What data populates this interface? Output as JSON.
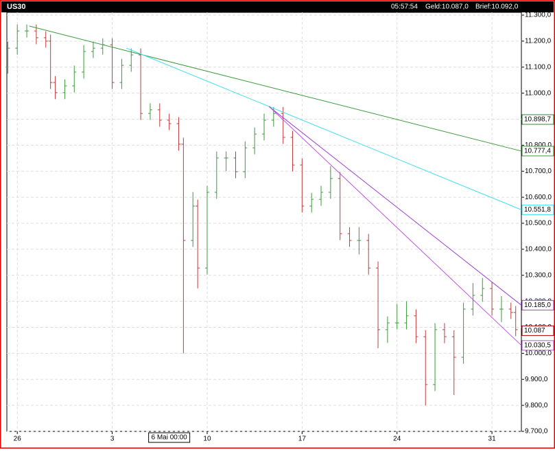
{
  "chart_data": {
    "type": "ohlc",
    "title": "US30",
    "header_info": [
      "05:57:54",
      "Geld:10.087,0",
      "Brief:10.092,0"
    ],
    "up_color": "#3a9a3a",
    "down_color": "#c23a3a",
    "grid": true,
    "xlim": [
      -2.2,
      106.2
    ],
    "ylim": [
      9700,
      11300
    ],
    "xticks": [
      {
        "value": 0,
        "label": "26"
      },
      {
        "value": 20,
        "label": "3"
      },
      {
        "value": 40,
        "label": "10"
      },
      {
        "value": 60,
        "label": "17"
      },
      {
        "value": 80,
        "label": "24"
      },
      {
        "value": 100,
        "label": "31"
      }
    ],
    "cursor": {
      "value": 32,
      "label": "6 Mai 00:00"
    },
    "yticks": [
      {
        "value": 9700,
        "label": "9.700,0"
      },
      {
        "value": 9800,
        "label": "9.800,0"
      },
      {
        "value": 9900,
        "label": "9.900,0"
      },
      {
        "value": 10000,
        "label": "10.000,0"
      },
      {
        "value": 10100,
        "label": "10.100,0"
      },
      {
        "value": 10200,
        "label": "10.200,0"
      },
      {
        "value": 10300,
        "label": "10.300,0"
      },
      {
        "value": 10400,
        "label": "10.400,0"
      },
      {
        "value": 10500,
        "label": "10.500,0"
      },
      {
        "value": 10600,
        "label": "10.600,0"
      },
      {
        "value": 10700,
        "label": "10.700,0"
      },
      {
        "value": 10800,
        "label": "10.800,0"
      },
      {
        "value": 10900,
        "label": "10.900,0"
      },
      {
        "value": 11000,
        "label": "11.000,0"
      },
      {
        "value": 11100,
        "label": "11.100,0"
      },
      {
        "value": 11200,
        "label": "11.200,0"
      },
      {
        "value": 11300,
        "label": "11.300,0"
      }
    ],
    "x": [
      -2,
      0,
      2,
      4,
      6,
      7,
      8,
      10,
      12,
      14,
      16,
      18,
      20,
      22,
      24,
      26,
      28,
      30,
      32,
      34,
      35,
      37,
      38,
      40,
      42,
      44,
      46,
      48,
      50,
      52,
      54,
      56,
      58,
      60,
      62,
      64,
      66,
      68,
      70,
      72,
      74,
      76,
      78,
      80,
      82,
      84,
      86,
      88,
      90,
      92,
      94,
      96,
      98,
      100,
      102,
      104,
      105
    ],
    "open": [
      11100,
      11173,
      11239,
      11239,
      11213,
      11200,
      11041,
      11002,
      11028,
      11081,
      11160,
      11173,
      11186,
      11041,
      11107,
      11147,
      10922,
      10936,
      10896,
      10883,
      10804,
      10434,
      10566,
      10328,
      10619,
      10751,
      10751,
      10698,
      10790,
      10843,
      10896,
      10922,
      10830,
      10724,
      10566,
      10592,
      10619,
      10672,
      10460,
      10434,
      10434,
      10328,
      10091,
      10117,
      10117,
      10144,
      10064,
      9880,
      10091,
      10064,
      9985,
      10170,
      10223,
      10249,
      10170,
      10170,
      10157
    ],
    "high": [
      11198,
      11264,
      11264,
      11264,
      11238,
      11225,
      11066,
      11053,
      11106,
      11185,
      11198,
      11211,
      11211,
      11132,
      11172,
      11172,
      10961,
      10961,
      10921,
      10908,
      10829,
      10620,
      10591,
      10644,
      10776,
      10776,
      10776,
      10815,
      10868,
      10921,
      10947,
      10947,
      10855,
      10749,
      10617,
      10644,
      10720,
      10697,
      10485,
      10485,
      10459,
      10353,
      10142,
      10190,
      10200,
      10169,
      10089,
      10116,
      10116,
      10089,
      10195,
      10270,
      10290,
      10274,
      10220,
      10195,
      10182
    ],
    "low": [
      11075,
      11148,
      11214,
      11188,
      11175,
      11016,
      10977,
      10977,
      11003,
      11056,
      11135,
      11148,
      11016,
      11016,
      11082,
      10897,
      10897,
      10871,
      10858,
      10779,
      10000,
      10409,
      10250,
      10303,
      10594,
      10700,
      10673,
      10673,
      10765,
      10818,
      10871,
      10805,
      10699,
      10541,
      10541,
      10567,
      10594,
      10435,
      10409,
      10380,
      10303,
      10020,
      10040,
      10092,
      10092,
      10039,
      9800,
      9855,
      10039,
      9840,
      9960,
      10145,
      10198,
      10145,
      10120,
      10132,
      10066
    ],
    "close": [
      11173,
      11239,
      11239,
      11213,
      11200,
      11041,
      11002,
      11028,
      11081,
      11160,
      11173,
      11186,
      11041,
      11107,
      11147,
      10922,
      10936,
      10896,
      10883,
      10804,
      10434,
      10566,
      10328,
      10619,
      10751,
      10751,
      10698,
      10790,
      10843,
      10896,
      10922,
      10830,
      10724,
      10566,
      10592,
      10619,
      10672,
      10460,
      10434,
      10434,
      10328,
      10091,
      10117,
      10117,
      10144,
      10064,
      9880,
      10091,
      10064,
      9985,
      10170,
      10223,
      10249,
      10170,
      10170,
      10157,
      10091
    ],
    "trendlines": [
      {
        "color": "#3a9a3a",
        "x": [
          2.5,
          106.2
        ],
        "y": [
          11258,
          10777.4
        ],
        "end_label": "10.777,4"
      },
      {
        "color": "#40e0f0",
        "x": [
          23,
          106.2
        ],
        "y": [
          11173,
          10551.8
        ],
        "end_label": "10.551,8"
      },
      {
        "color": "#9a40d0",
        "x": [
          53,
          106.2
        ],
        "y": [
          10949,
          10185.0
        ],
        "end_label": "10.185,0"
      },
      {
        "color": "#c050e0",
        "x": [
          53.5,
          106.2
        ],
        "y": [
          10941,
          10030.5
        ],
        "end_label": "10.030,5"
      }
    ],
    "levels": [
      {
        "value": 10898.7,
        "label": "10.898,7",
        "color": "#2a8a2a"
      },
      {
        "value": 10087,
        "label": "10.087",
        "color": "#b00000"
      }
    ]
  }
}
